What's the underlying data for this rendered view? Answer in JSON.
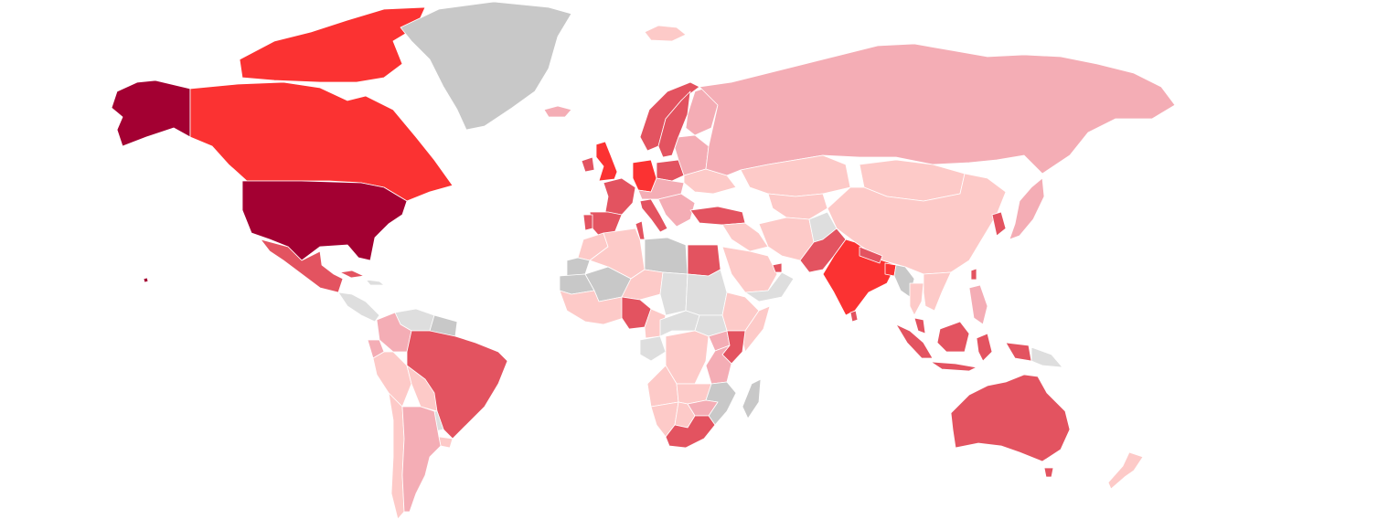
{
  "map": {
    "type": "choropleth",
    "projection": "miller",
    "palette": {
      "level_0_no_data": "#c8c8c8",
      "level_1_no_data_light": "#dedede",
      "level_2_very_low": "#fdcac8",
      "level_3_low": "#f4adb5",
      "level_4_medium": "#e35360",
      "level_5_high": "#fb3232",
      "level_6_highest": "#a30032"
    },
    "regions": [
      {
        "id": "alaska",
        "level": "level_6_highest"
      },
      {
        "id": "united-states",
        "level": "level_6_highest"
      },
      {
        "id": "hawaii",
        "level": "level_6_highest"
      },
      {
        "id": "canada",
        "level": "level_5_high"
      },
      {
        "id": "canadian-arctic-islands",
        "level": "level_5_high"
      },
      {
        "id": "greenland",
        "level": "level_0_no_data"
      },
      {
        "id": "iceland",
        "level": "level_3_low"
      },
      {
        "id": "svalbard",
        "level": "level_2_very_low"
      },
      {
        "id": "mexico",
        "level": "level_4_medium"
      },
      {
        "id": "central-america",
        "level": "level_1_no_data_light"
      },
      {
        "id": "cuba",
        "level": "level_4_medium"
      },
      {
        "id": "caribbean",
        "level": "level_1_no_data_light"
      },
      {
        "id": "venezuela",
        "level": "level_1_no_data_light"
      },
      {
        "id": "guianas",
        "level": "level_0_no_data"
      },
      {
        "id": "colombia",
        "level": "level_3_low"
      },
      {
        "id": "ecuador",
        "level": "level_3_low"
      },
      {
        "id": "peru",
        "level": "level_2_very_low"
      },
      {
        "id": "bolivia",
        "level": "level_2_very_low"
      },
      {
        "id": "brazil",
        "level": "level_4_medium"
      },
      {
        "id": "paraguay",
        "level": "level_1_no_data_light"
      },
      {
        "id": "uruguay",
        "level": "level_2_very_low"
      },
      {
        "id": "chile",
        "level": "level_2_very_low"
      },
      {
        "id": "argentina",
        "level": "level_3_low"
      },
      {
        "id": "united-kingdom",
        "level": "level_5_high"
      },
      {
        "id": "ireland",
        "level": "level_4_medium"
      },
      {
        "id": "norway",
        "level": "level_4_medium"
      },
      {
        "id": "sweden",
        "level": "level_4_medium"
      },
      {
        "id": "finland",
        "level": "level_3_low"
      },
      {
        "id": "france",
        "level": "level_4_medium"
      },
      {
        "id": "spain",
        "level": "level_4_medium"
      },
      {
        "id": "portugal",
        "level": "level_4_medium"
      },
      {
        "id": "germany",
        "level": "level_5_high"
      },
      {
        "id": "poland",
        "level": "level_4_medium"
      },
      {
        "id": "italy",
        "level": "level_4_medium"
      },
      {
        "id": "central-europe",
        "level": "level_3_low"
      },
      {
        "id": "balkans",
        "level": "level_3_low"
      },
      {
        "id": "baltics-belarus",
        "level": "level_3_low"
      },
      {
        "id": "ukraine",
        "level": "level_2_very_low"
      },
      {
        "id": "turkey",
        "level": "level_4_medium"
      },
      {
        "id": "russia",
        "level": "level_3_low"
      },
      {
        "id": "kazakhstan",
        "level": "level_2_very_low"
      },
      {
        "id": "central-asia",
        "level": "level_2_very_low"
      },
      {
        "id": "mongolia",
        "level": "level_2_very_low"
      },
      {
        "id": "china",
        "level": "level_2_very_low"
      },
      {
        "id": "korea",
        "level": "level_4_medium"
      },
      {
        "id": "japan",
        "level": "level_3_low"
      },
      {
        "id": "taiwan",
        "level": "level_4_medium"
      },
      {
        "id": "iran",
        "level": "level_2_very_low"
      },
      {
        "id": "afghanistan",
        "level": "level_1_no_data_light"
      },
      {
        "id": "iraq-syria",
        "level": "level_2_very_low"
      },
      {
        "id": "saudi-arabia",
        "level": "level_2_very_low"
      },
      {
        "id": "yemen-oman",
        "level": "level_1_no_data_light"
      },
      {
        "id": "uae",
        "level": "level_4_medium"
      },
      {
        "id": "pakistan",
        "level": "level_4_medium"
      },
      {
        "id": "india",
        "level": "level_5_high"
      },
      {
        "id": "nepal",
        "level": "level_4_medium"
      },
      {
        "id": "bangladesh",
        "level": "level_5_high"
      },
      {
        "id": "sri-lanka",
        "level": "level_4_medium"
      },
      {
        "id": "myanmar",
        "level": "level_0_no_data"
      },
      {
        "id": "thailand",
        "level": "level_2_very_low"
      },
      {
        "id": "indochina",
        "level": "level_2_very_low"
      },
      {
        "id": "philippines",
        "level": "level_3_low"
      },
      {
        "id": "malaysia",
        "level": "level_4_medium"
      },
      {
        "id": "sumatra",
        "level": "level_4_medium"
      },
      {
        "id": "java",
        "level": "level_4_medium"
      },
      {
        "id": "borneo-kalimantan",
        "level": "level_4_medium"
      },
      {
        "id": "sulawesi",
        "level": "level_4_medium"
      },
      {
        "id": "new-guinea-west",
        "level": "level_4_medium"
      },
      {
        "id": "papua-new-guinea",
        "level": "level_1_no_data_light"
      },
      {
        "id": "australia",
        "level": "level_4_medium"
      },
      {
        "id": "tasmania",
        "level": "level_4_medium"
      },
      {
        "id": "new-zealand",
        "level": "level_2_very_low"
      },
      {
        "id": "morocco",
        "level": "level_2_very_low"
      },
      {
        "id": "western-sahara",
        "level": "level_0_no_data"
      },
      {
        "id": "algeria",
        "level": "level_2_very_low"
      },
      {
        "id": "tunisia",
        "level": "level_4_medium"
      },
      {
        "id": "libya",
        "level": "level_0_no_data"
      },
      {
        "id": "egypt",
        "level": "level_4_medium"
      },
      {
        "id": "mauritania",
        "level": "level_0_no_data"
      },
      {
        "id": "mali",
        "level": "level_0_no_data"
      },
      {
        "id": "niger",
        "level": "level_2_very_low"
      },
      {
        "id": "chad",
        "level": "level_1_no_data_light"
      },
      {
        "id": "sudan",
        "level": "level_1_no_data_light"
      },
      {
        "id": "ethiopia",
        "level": "level_2_very_low"
      },
      {
        "id": "somalia",
        "level": "level_2_very_low"
      },
      {
        "id": "west-africa",
        "level": "level_2_very_low"
      },
      {
        "id": "nigeria",
        "level": "level_4_medium"
      },
      {
        "id": "cameroon",
        "level": "level_2_very_low"
      },
      {
        "id": "central-african-republic",
        "level": "level_1_no_data_light"
      },
      {
        "id": "south-sudan",
        "level": "level_1_no_data_light"
      },
      {
        "id": "kenya",
        "level": "level_4_medium"
      },
      {
        "id": "uganda",
        "level": "level_3_low"
      },
      {
        "id": "tanzania",
        "level": "level_3_low"
      },
      {
        "id": "gabon-congo",
        "level": "level_1_no_data_light"
      },
      {
        "id": "dr-congo",
        "level": "level_2_very_low"
      },
      {
        "id": "angola",
        "level": "level_2_very_low"
      },
      {
        "id": "zambia",
        "level": "level_2_very_low"
      },
      {
        "id": "malawi-mozambique",
        "level": "level_0_no_data"
      },
      {
        "id": "zimbabwe",
        "level": "level_3_low"
      },
      {
        "id": "namibia",
        "level": "level_2_very_low"
      },
      {
        "id": "botswana",
        "level": "level_2_very_low"
      },
      {
        "id": "south-africa",
        "level": "level_4_medium"
      },
      {
        "id": "madagascar",
        "level": "level_0_no_data"
      }
    ]
  }
}
